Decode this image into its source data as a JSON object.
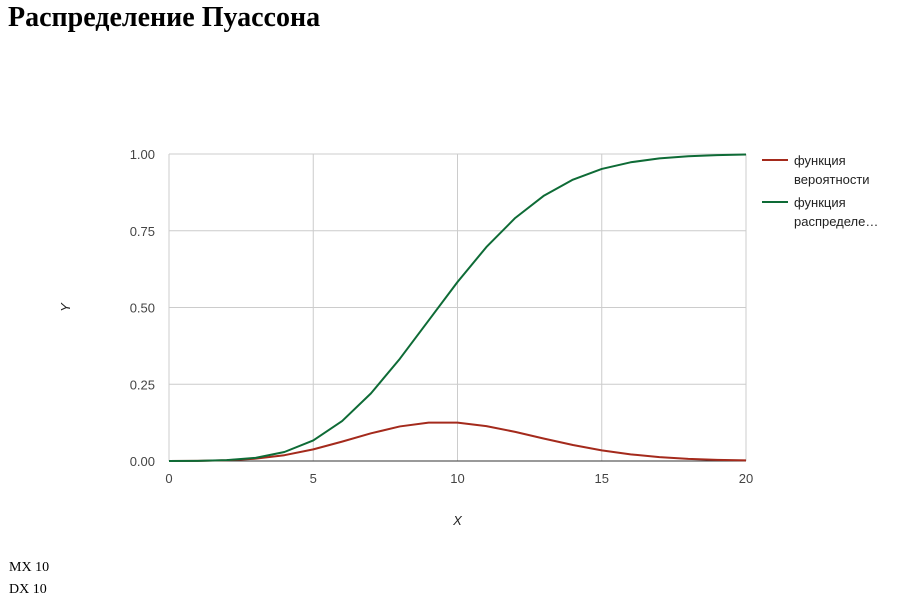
{
  "page": {
    "title": "Распределение Пуассона"
  },
  "stats": {
    "mx_label": "MX",
    "mx_value": "10",
    "dx_label": "DX",
    "dx_value": "10"
  },
  "chart_data": {
    "type": "line",
    "title": "",
    "xlabel": "X",
    "ylabel": "Y",
    "xlim": [
      0,
      20
    ],
    "ylim": [
      0,
      1
    ],
    "x_ticks": [
      "0",
      "5",
      "10",
      "15",
      "20"
    ],
    "y_ticks": [
      "0.00",
      "0.25",
      "0.50",
      "0.75",
      "1.00"
    ],
    "grid": true,
    "legend": "right",
    "x": [
      0,
      1,
      2,
      3,
      4,
      5,
      6,
      7,
      8,
      9,
      10,
      11,
      12,
      13,
      14,
      15,
      16,
      17,
      18,
      19,
      20
    ],
    "series": [
      {
        "name": "функция вероятности",
        "legend_label": "функция\nвероятности",
        "color": "#a42a1c",
        "values": [
          0.0,
          0.0005,
          0.0023,
          0.0076,
          0.0189,
          0.0378,
          0.0631,
          0.0901,
          0.1126,
          0.1251,
          0.1251,
          0.1137,
          0.0948,
          0.0729,
          0.0521,
          0.0347,
          0.0217,
          0.0128,
          0.0071,
          0.0037,
          0.0019
        ]
      },
      {
        "name": "функция распределения",
        "legend_label": "функция\nраспределе…",
        "color": "#0e6b36",
        "values": [
          0.0,
          0.0005,
          0.0028,
          0.0103,
          0.0293,
          0.0671,
          0.1301,
          0.2202,
          0.3328,
          0.4579,
          0.583,
          0.6968,
          0.7916,
          0.8645,
          0.9165,
          0.9513,
          0.973,
          0.9857,
          0.9928,
          0.9965,
          0.9984
        ]
      }
    ]
  }
}
